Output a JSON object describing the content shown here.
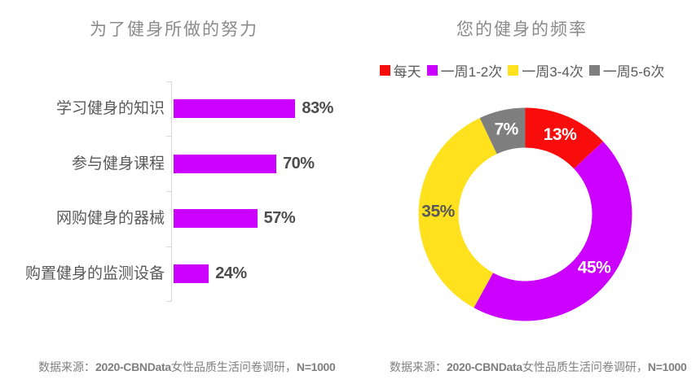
{
  "chart_data": [
    {
      "type": "bar",
      "orientation": "horizontal",
      "title": "为了健身所做的努力",
      "categories": [
        "学习健身的知识",
        "参与健身课程",
        "网购健身的器械",
        "购置健身的监测设备"
      ],
      "values": [
        83,
        70,
        57,
        24
      ],
      "value_labels": [
        "83%",
        "70%",
        "57%",
        "24%"
      ],
      "xlim": [
        0,
        100
      ],
      "grid": false,
      "bar_color": "#CC00FF",
      "axis_color": "#D9D9D9"
    },
    {
      "type": "pie",
      "subtype": "donut",
      "title": "您的健身的频率",
      "legend_position": "top",
      "slices": [
        {
          "label": "每天",
          "value": 13,
          "pct_label": "13%",
          "color": "#F90C0C",
          "label_color": "#FFFFFF"
        },
        {
          "label": "一周1-2次",
          "value": 45,
          "pct_label": "45%",
          "color": "#CC00FF",
          "label_color": "#FFFFFF"
        },
        {
          "label": "一周3-4次",
          "value": 35,
          "pct_label": "35%",
          "color": "#FFE11E",
          "label_color": "#595959"
        },
        {
          "label": "一周5-6次",
          "value": 7,
          "pct_label": "7%",
          "color": "#7F7F7F",
          "label_color": "#FFFFFF"
        }
      ]
    }
  ],
  "footer": {
    "left": {
      "prefix": "数据来源：",
      "source_bold": "2020-CBNData",
      "middle": "女性品质生活问卷调研，",
      "n_bold": "N=1000"
    },
    "right": {
      "prefix": "数据来源：",
      "source_bold": "2020-CBNData",
      "middle": "女性品质生活问卷调研，",
      "n_bold": "N=1000"
    }
  },
  "theme": {
    "background": "#FFFFFF",
    "title_color": "#8A8A8A",
    "category_color": "#595959",
    "value_color": "#4D4D4D",
    "legend_text_color": "#595959",
    "source_color": "#7F7F7F",
    "axis_color": "#D9D9D9"
  }
}
